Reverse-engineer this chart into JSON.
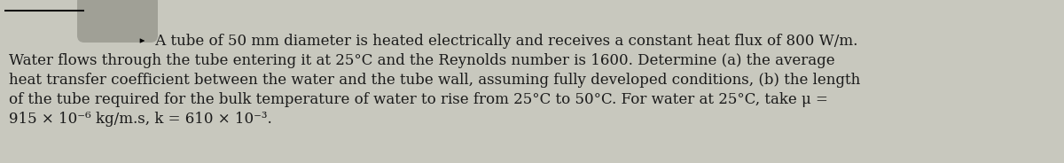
{
  "bg_color": "#c8c8be",
  "text_color": "#1a1a1a",
  "line1_arrow": "►",
  "line1_main": " A tube of 50 mm diameter is heated electrically and receives a constant heat flux of 800 W/m.",
  "line2": "Water flows through the tube entering it at 25°C and the Reynolds number is 1600. Determine (a) the average",
  "line3": "heat transfer coefficient between the water and the tube wall, assuming fully developed conditions, (b) the length",
  "line4": "of the tube required for the bulk temperature of water to rise from 25°C to 50°C. For water at 25°C, take μ =",
  "line5": "915 × 10⁻⁶ kg/m.s, k = 610 × 10⁻³.",
  "tab_color": "#999990",
  "line_color": "#111111",
  "font_size": 12.0,
  "figsize": [
    12.0,
    1.84
  ],
  "dpi": 100
}
